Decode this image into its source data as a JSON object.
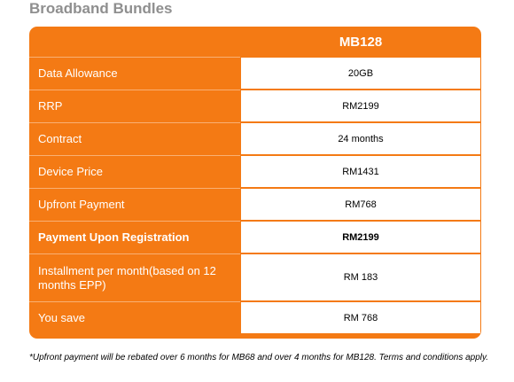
{
  "page": {
    "title": "Broadband Bundles",
    "plan_name": "MB128",
    "footnote": "*Upfront payment will be rebated over 6 months for MB68 and over 4 months for MB128. Terms and conditions apply."
  },
  "rows": [
    {
      "label": "Data Allowance",
      "value": "20GB"
    },
    {
      "label": "RRP",
      "value": "RM2199"
    },
    {
      "label": "Contract",
      "value": "24 months"
    },
    {
      "label": "Device Price",
      "value": "RM1431"
    },
    {
      "label": "Upfront Payment",
      "value": "RM768"
    },
    {
      "label": "Payment Upon Registration",
      "value": "RM2199"
    },
    {
      "label": "Installment per month(based on 12 months EPP)",
      "value": "RM 183"
    },
    {
      "label": "You save",
      "value": "RM 768"
    }
  ],
  "colors": {
    "accent": "#f47a14",
    "title_gray": "#8f8f8f"
  }
}
